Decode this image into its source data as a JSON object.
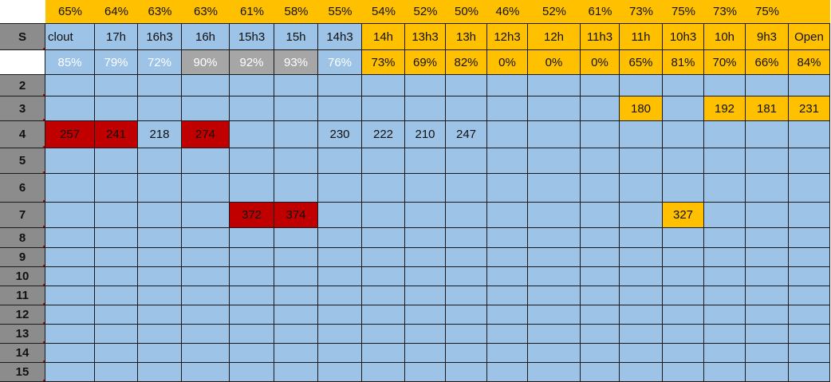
{
  "colors": {
    "blue": "#9dc3e6",
    "orange": "#ffc000",
    "red": "#c00000",
    "gray": "#a6a6a6",
    "header_gray": "#8c8c8c"
  },
  "top_pct": [
    "65%",
    "64%",
    "63%",
    "63%",
    "61%",
    "58%",
    "55%",
    "54%",
    "52%",
    "50%",
    "46%",
    "52%",
    "61%",
    "73%",
    "75%",
    "73%",
    "75%",
    ""
  ],
  "corner_label": "S",
  "time_headers": [
    "clout",
    "17h",
    "16h3",
    "16h",
    "15h3",
    "15h",
    "14h3",
    "14h",
    "13h3",
    "13h",
    "12h3",
    "12h",
    "11h3",
    "11h",
    "10h3",
    "10h",
    "9h3",
    "Open"
  ],
  "fill_pct": [
    "85%",
    "79%",
    "72%",
    "90%",
    "92%",
    "93%",
    "76%",
    "73%",
    "69%",
    "82%",
    "0%",
    "0%",
    "0%",
    "65%",
    "81%",
    "70%",
    "66%",
    "84%"
  ],
  "rows": [
    {
      "label": "2",
      "cells": [
        "",
        "",
        "",
        "",
        "",
        "",
        "",
        "",
        "",
        "",
        "",
        "",
        "",
        "",
        "",
        "",
        "",
        ""
      ]
    },
    {
      "label": "3",
      "cells": [
        "",
        "",
        "",
        "",
        "",
        "",
        "",
        "",
        "",
        "",
        "",
        "",
        "",
        "180",
        "",
        "192",
        "181",
        "231"
      ]
    },
    {
      "label": "4",
      "cells": [
        "257",
        "241",
        "218",
        "274",
        "",
        "",
        "230",
        "222",
        "210",
        "247",
        "",
        "",
        "",
        "",
        "",
        "",
        "",
        ""
      ]
    },
    {
      "label": "5",
      "cells": [
        "",
        "",
        "",
        "",
        "",
        "",
        "",
        "",
        "",
        "",
        "",
        "",
        "",
        "",
        "",
        "",
        "",
        ""
      ]
    },
    {
      "label": "6",
      "cells": [
        "",
        "",
        "",
        "",
        "",
        "",
        "",
        "",
        "",
        "",
        "",
        "",
        "",
        "",
        "",
        "",
        "",
        ""
      ]
    },
    {
      "label": "7",
      "cells": [
        "",
        "",
        "",
        "",
        "372",
        "374",
        "",
        "",
        "",
        "",
        "",
        "",
        "",
        "",
        "327",
        "",
        "",
        ""
      ]
    },
    {
      "label": "8",
      "cells": [
        "",
        "",
        "",
        "",
        "",
        "",
        "",
        "",
        "",
        "",
        "",
        "",
        "",
        "",
        "",
        "",
        "",
        ""
      ]
    },
    {
      "label": "9",
      "cells": [
        "",
        "",
        "",
        "",
        "",
        "",
        "",
        "",
        "",
        "",
        "",
        "",
        "",
        "",
        "",
        "",
        "",
        ""
      ]
    },
    {
      "label": "10",
      "cells": [
        "",
        "",
        "",
        "",
        "",
        "",
        "",
        "",
        "",
        "",
        "",
        "",
        "",
        "",
        "",
        "",
        "",
        ""
      ]
    },
    {
      "label": "11",
      "cells": [
        "",
        "",
        "",
        "",
        "",
        "",
        "",
        "",
        "",
        "",
        "",
        "",
        "",
        "",
        "",
        "",
        "",
        ""
      ]
    },
    {
      "label": "12",
      "cells": [
        "",
        "",
        "",
        "",
        "",
        "",
        "",
        "",
        "",
        "",
        "",
        "",
        "",
        "",
        "",
        "",
        "",
        ""
      ]
    },
    {
      "label": "13",
      "cells": [
        "",
        "",
        "",
        "",
        "",
        "",
        "",
        "",
        "",
        "",
        "",
        "",
        "",
        "",
        "",
        "",
        "",
        ""
      ]
    },
    {
      "label": "14",
      "cells": [
        "",
        "",
        "",
        "",
        "",
        "",
        "",
        "",
        "",
        "",
        "",
        "",
        "",
        "",
        "",
        "",
        "",
        ""
      ]
    },
    {
      "label": "15",
      "cells": [
        "",
        "",
        "",
        "",
        "",
        "",
        "",
        "",
        "",
        "",
        "",
        "",
        "",
        "",
        "",
        "",
        "",
        ""
      ]
    }
  ]
}
